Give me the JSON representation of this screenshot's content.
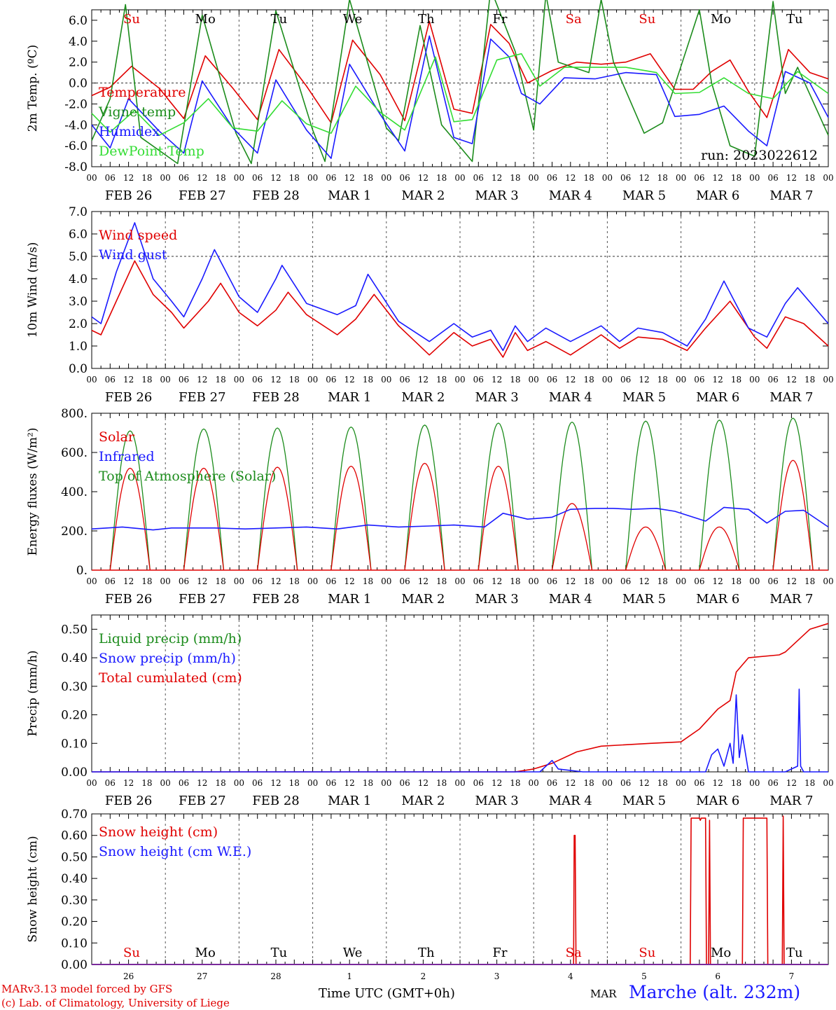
{
  "colors": {
    "red": "#e00000",
    "green": "#1c8c1c",
    "blue": "#1a1aff",
    "lightgreen": "#33dd33",
    "grid": "#555555"
  },
  "run_label": "run: 2023022612",
  "footer": {
    "model": "MARv3.13 model forced by GFS",
    "credit": "(c) Lab. of Climatology, University of Liege",
    "xaxis_title": "Time UTC (GMT+0h)",
    "month": "MAR",
    "place": "Marche (alt. 232m)"
  },
  "day_abbrevs": [
    {
      "label": "Su",
      "color": "red"
    },
    {
      "label": "Mo",
      "color": "black"
    },
    {
      "label": "Tu",
      "color": "black"
    },
    {
      "label": "We",
      "color": "black"
    },
    {
      "label": "Th",
      "color": "black"
    },
    {
      "label": "Fr",
      "color": "black"
    },
    {
      "label": "Sa",
      "color": "red"
    },
    {
      "label": "Su",
      "color": "red"
    },
    {
      "label": "Mo",
      "color": "black"
    },
    {
      "label": "Tu",
      "color": "black"
    }
  ],
  "day_numbers": [
    "26",
    "27",
    "28",
    "1",
    "2",
    "3",
    "4",
    "5",
    "6",
    "7"
  ],
  "date_labels": [
    "FEB 26",
    "FEB 27",
    "FEB 28",
    "MAR  1",
    "MAR  2",
    "MAR  3",
    "MAR  4",
    "MAR  5",
    "MAR  6",
    "MAR  7"
  ],
  "hour_ticks": [
    "00",
    "06",
    "12",
    "18"
  ],
  "chart_data": [
    {
      "type": "line",
      "ylabel": "2m Temp. (ºC)",
      "ylim": [
        -8,
        7
      ],
      "yticks": [
        "6.0",
        "4.0",
        "2.0",
        "0.0",
        "-2.0",
        "-4.0",
        "-6.0",
        "-8.0"
      ],
      "ytick_values": [
        6,
        4,
        2,
        0,
        -2,
        -4,
        -6,
        -8
      ],
      "hline": 0,
      "x_unit": "hours since FEB 26 00 UTC",
      "legend": [
        {
          "name": "Temperature",
          "color": "red"
        },
        {
          "name": "Vigne temp",
          "color": "green"
        },
        {
          "name": "Humidex",
          "color": "blue"
        },
        {
          "name": "DewPoint Temp",
          "color": "lightgreen"
        }
      ],
      "series": [
        {
          "name": "Temperature",
          "color": "red",
          "x": [
            0,
            6,
            13,
            22,
            30,
            37,
            46,
            54,
            61,
            70,
            78,
            85,
            94,
            102,
            110,
            118,
            124,
            130,
            136,
            142,
            150,
            158,
            166,
            174,
            182,
            190,
            196,
            202,
            208,
            214,
            220,
            227,
            234,
            240
          ],
          "y": [
            -1.2,
            -0.4,
            1.6,
            -0.5,
            -3.4,
            2.6,
            -0.5,
            -3.5,
            3.2,
            -0.3,
            -3.8,
            4.1,
            0.8,
            -3.6,
            5.9,
            -2.5,
            -2.9,
            5.6,
            3.8,
            0.0,
            1.2,
            2.0,
            1.8,
            2.0,
            2.8,
            -0.6,
            -0.6,
            1.1,
            2.2,
            -0.8,
            -3.3,
            3.2,
            1.0,
            0.4
          ]
        },
        {
          "name": "Vigne temp",
          "color": "green",
          "x": [
            0,
            6,
            11,
            16,
            28,
            36,
            47,
            52,
            60,
            72,
            76,
            84,
            96,
            100,
            107,
            114,
            124,
            130,
            138,
            144,
            148,
            152,
            162,
            166,
            170,
            180,
            186,
            198,
            202,
            208,
            216,
            222,
            226,
            230,
            240
          ],
          "y": [
            -5.5,
            -1.5,
            7.5,
            -5.2,
            -7.7,
            6.5,
            -4.8,
            -7.7,
            6.9,
            -4.5,
            -7.5,
            8.0,
            -4.3,
            -5.5,
            5.5,
            -4.0,
            -7.5,
            9.0,
            3.0,
            -4.5,
            8.5,
            2.0,
            1.0,
            8.0,
            2.0,
            -4.8,
            -3.8,
            7.0,
            0.0,
            -6.0,
            -7.0,
            7.8,
            -1.0,
            1.5,
            -5.0
          ]
        },
        {
          "name": "Humidex",
          "color": "blue",
          "x": [
            0,
            6,
            12,
            22,
            30,
            36,
            46,
            54,
            60,
            70,
            78,
            84,
            94,
            102,
            110,
            118,
            124,
            130,
            136,
            140,
            146,
            154,
            164,
            174,
            184,
            190,
            198,
            206,
            214,
            220,
            226,
            234,
            240
          ],
          "y": [
            -4.0,
            -6.2,
            -1.5,
            -4.6,
            -6.7,
            0.2,
            -4.3,
            -6.7,
            0.3,
            -4.5,
            -7.2,
            1.8,
            -3.0,
            -6.5,
            4.5,
            -5.2,
            -5.8,
            4.2,
            2.5,
            -1.0,
            -2.0,
            0.5,
            0.4,
            1.0,
            0.8,
            -3.2,
            -3.0,
            -2.2,
            -4.6,
            -6.0,
            1.1,
            0.0,
            -3.3
          ]
        },
        {
          "name": "DewPoint Temp",
          "color": "lightgreen",
          "x": [
            0,
            6,
            14,
            22,
            30,
            38,
            46,
            54,
            62,
            70,
            78,
            86,
            94,
            102,
            112,
            118,
            124,
            132,
            140,
            146,
            154,
            164,
            174,
            184,
            190,
            198,
            206,
            214,
            222,
            230,
            240
          ],
          "y": [
            -2.9,
            -4.7,
            -2.6,
            -5.0,
            -3.8,
            -1.5,
            -4.3,
            -4.6,
            -1.7,
            -3.9,
            -4.8,
            -0.3,
            -2.8,
            -4.5,
            2.5,
            -3.7,
            -3.5,
            2.2,
            2.8,
            -0.3,
            1.5,
            1.5,
            1.5,
            1.0,
            -1.0,
            -0.9,
            0.5,
            -1.0,
            -1.5,
            1.1,
            -1.0
          ]
        }
      ]
    },
    {
      "type": "line",
      "ylabel": "10m Wind (m/s)",
      "ylim": [
        0,
        7
      ],
      "yticks": [
        "7.0",
        "6.0",
        "5.0",
        "4.0",
        "3.0",
        "2.0",
        "1.0",
        "0.0"
      ],
      "ytick_values": [
        7,
        6,
        5,
        4,
        3,
        2,
        1,
        0
      ],
      "hline": 5,
      "legend": [
        {
          "name": "Wind speed",
          "color": "red"
        },
        {
          "name": "Wind gust",
          "color": "blue"
        }
      ],
      "series": [
        {
          "name": "Wind speed",
          "color": "red",
          "x": [
            0,
            3,
            8,
            14,
            20,
            26,
            30,
            38,
            42,
            48,
            54,
            60,
            64,
            70,
            80,
            86,
            92,
            100,
            110,
            118,
            124,
            130,
            134,
            138,
            142,
            148,
            156,
            166,
            172,
            178,
            186,
            194,
            200,
            208,
            216,
            220,
            226,
            232,
            240
          ],
          "y": [
            1.7,
            1.5,
            3.0,
            4.8,
            3.3,
            2.5,
            1.8,
            3.0,
            3.8,
            2.5,
            1.9,
            2.6,
            3.4,
            2.4,
            1.5,
            2.2,
            3.3,
            1.9,
            0.6,
            1.6,
            1.0,
            1.3,
            0.5,
            1.6,
            0.8,
            1.2,
            0.6,
            1.5,
            0.9,
            1.4,
            1.3,
            0.8,
            1.8,
            3.0,
            1.4,
            0.9,
            2.3,
            2.0,
            1.0
          ]
        },
        {
          "name": "Wind gust",
          "color": "blue",
          "x": [
            0,
            3,
            8,
            14,
            20,
            26,
            30,
            36,
            40,
            48,
            54,
            60,
            62,
            70,
            80,
            86,
            90,
            100,
            110,
            118,
            124,
            130,
            134,
            138,
            142,
            148,
            156,
            166,
            172,
            178,
            186,
            194,
            200,
            206,
            214,
            220,
            226,
            230,
            240
          ],
          "y": [
            2.3,
            2.0,
            4.3,
            6.5,
            4.0,
            3.0,
            2.3,
            4.0,
            5.3,
            3.2,
            2.5,
            4.0,
            4.6,
            2.9,
            2.4,
            2.8,
            4.2,
            2.1,
            1.2,
            2.0,
            1.4,
            1.7,
            0.8,
            1.9,
            1.2,
            1.8,
            1.2,
            1.9,
            1.2,
            1.8,
            1.6,
            1.0,
            2.2,
            3.9,
            1.8,
            1.4,
            2.9,
            3.6,
            2.0
          ]
        }
      ]
    },
    {
      "type": "line",
      "ylabel": "Energy fluxes (W/m²)",
      "ylim": [
        0,
        800
      ],
      "yticks": [
        "800.",
        "600.",
        "400.",
        "200.",
        "0."
      ],
      "ytick_values": [
        800,
        600,
        400,
        200,
        0
      ],
      "legend": [
        {
          "name": "Solar",
          "color": "red"
        },
        {
          "name": "Infrared",
          "color": "blue"
        },
        {
          "name": "Top of Atmosphere (Solar)",
          "color": "green"
        }
      ],
      "daily_peaks": {
        "toa": [
          710,
          720,
          725,
          730,
          740,
          750,
          755,
          760,
          765,
          775
        ],
        "solar": [
          520,
          520,
          525,
          530,
          545,
          530,
          340,
          220,
          220,
          560
        ]
      },
      "series": [
        {
          "name": "Infrared",
          "color": "blue",
          "x": [
            0,
            10,
            20,
            26,
            40,
            50,
            60,
            70,
            80,
            90,
            100,
            110,
            118,
            128,
            134,
            142,
            150,
            156,
            164,
            170,
            176,
            184,
            190,
            200,
            206,
            214,
            220,
            226,
            232,
            240
          ],
          "y": [
            210,
            220,
            205,
            215,
            215,
            210,
            215,
            220,
            210,
            230,
            220,
            225,
            230,
            220,
            290,
            260,
            270,
            310,
            315,
            315,
            310,
            315,
            300,
            250,
            320,
            310,
            240,
            300,
            305,
            220
          ]
        }
      ]
    },
    {
      "type": "line",
      "ylabel": "Precip (mm/h)",
      "ylim": [
        0,
        0.55
      ],
      "yticks": [
        "0.50",
        "0.40",
        "0.30",
        "0.20",
        "0.10",
        "0.00"
      ],
      "ytick_values": [
        0.5,
        0.4,
        0.3,
        0.2,
        0.1,
        0.0
      ],
      "legend": [
        {
          "name": "Liquid precip (mm/h)",
          "color": "green"
        },
        {
          "name": "Snow precip (mm/h)",
          "color": "blue"
        },
        {
          "name": "Total cumulated (cm)",
          "color": "red"
        }
      ],
      "series": [
        {
          "name": "Total cumulated (cm)",
          "color": "red",
          "x": [
            0,
            138,
            144,
            150,
            158,
            166,
            182,
            192,
            198,
            204,
            208,
            210,
            214,
            224,
            226,
            234,
            240
          ],
          "y": [
            0,
            0,
            0.01,
            0.03,
            0.07,
            0.09,
            0.1,
            0.105,
            0.15,
            0.22,
            0.25,
            0.35,
            0.4,
            0.41,
            0.42,
            0.5,
            0.52
          ]
        },
        {
          "name": "Snow precip (mm/h)",
          "color": "blue",
          "x": [
            0,
            146,
            148,
            150,
            152,
            160,
            200,
            202,
            204,
            206,
            208,
            209,
            210,
            211,
            212,
            214,
            226,
            230,
            230.5,
            231,
            232,
            240
          ],
          "y": [
            0,
            0,
            0.02,
            0.04,
            0.01,
            0,
            0,
            0.06,
            0.08,
            0.02,
            0.1,
            0.03,
            0.27,
            0.05,
            0.13,
            0,
            0,
            0.02,
            0.29,
            0.02,
            0,
            0
          ]
        }
      ]
    },
    {
      "type": "line",
      "ylabel": "Snow height (cm)",
      "ylim": [
        0,
        0.7
      ],
      "yticks": [
        "0.70",
        "0.60",
        "0.50",
        "0.40",
        "0.30",
        "0.20",
        "0.10",
        "0.00"
      ],
      "ytick_values": [
        0.7,
        0.6,
        0.5,
        0.4,
        0.3,
        0.2,
        0.1,
        0.0
      ],
      "legend": [
        {
          "name": "Snow height (cm)",
          "color": "red"
        },
        {
          "name": "Snow height (cm W.E.)",
          "color": "blue"
        }
      ],
      "series": [
        {
          "name": "Snow height (cm)",
          "color": "red",
          "x": [
            0,
            157,
            157.2,
            157.5,
            157.8,
            195,
            195.3,
            198,
            198.3,
            198.6,
            200,
            200.3,
            201,
            201.3,
            201.6,
            212,
            212.3,
            212.6,
            220,
            220.3,
            225,
            225.3,
            225.6,
            240
          ],
          "y": [
            0,
            0,
            0.6,
            0.6,
            0,
            0,
            0.68,
            0.68,
            0.67,
            0.68,
            0.68,
            0,
            0,
            0.67,
            0,
            0,
            0.68,
            0.68,
            0.68,
            0,
            0,
            0.69,
            0,
            0
          ]
        }
      ]
    }
  ]
}
